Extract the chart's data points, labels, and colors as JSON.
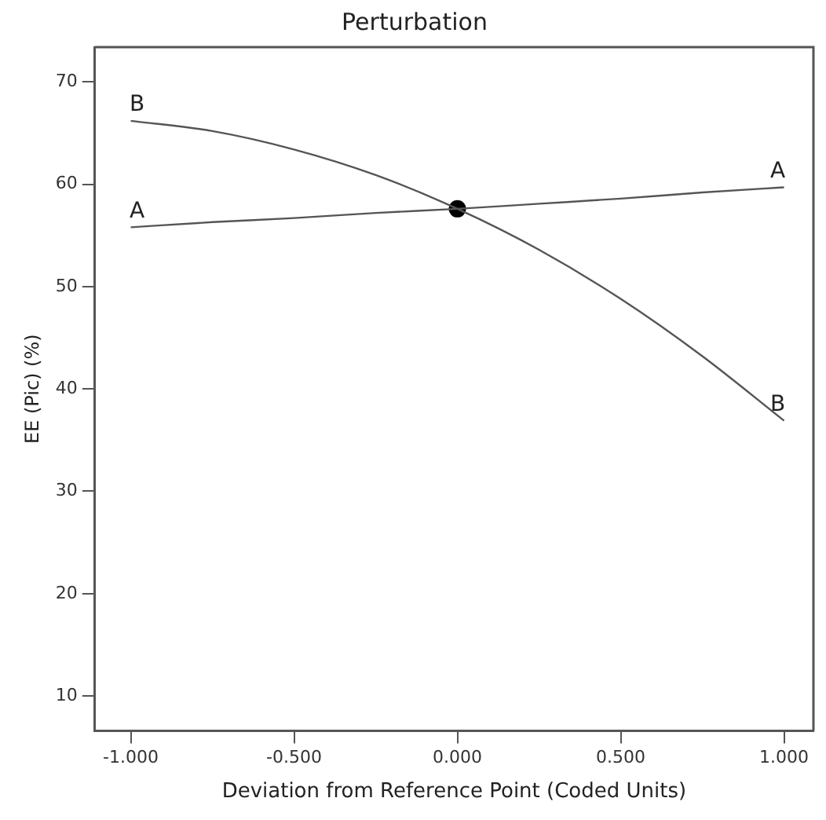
{
  "chart_data": {
    "type": "line",
    "title": "Perturbation",
    "xlabel": "Deviation from Reference Point (Coded Units)",
    "ylabel": "EE (Pic) (%)",
    "x": [
      -1,
      -0.75,
      -0.5,
      -0.25,
      0,
      0.25,
      0.5,
      0.75,
      1
    ],
    "series": [
      {
        "name": "A",
        "color": "#555555",
        "values": [
          55.8,
          56.3,
          56.7,
          57.2,
          57.6,
          58.1,
          58.6,
          59.2,
          59.7
        ],
        "marker": "none"
      },
      {
        "name": "B",
        "color": "#555555",
        "values": [
          66.2,
          65.2,
          63.4,
          60.9,
          57.6,
          53.6,
          48.8,
          43.2,
          36.9
        ],
        "marker": "none"
      },
      {
        "type": "scatter",
        "color": "#000000",
        "x": [
          0
        ],
        "values": [
          57.6
        ],
        "marker": "circle"
      }
    ],
    "xlim": [
      -1.11,
      1.09
    ],
    "ylim": [
      6.6,
      73.4
    ],
    "xticks": [
      {
        "value": -1,
        "label": "-1.000"
      },
      {
        "value": -0.5,
        "label": "-0.500"
      },
      {
        "value": 0,
        "label": "0.000"
      },
      {
        "value": 0.5,
        "label": "0.500"
      },
      {
        "value": 1,
        "label": "1.000"
      }
    ],
    "yticks": [
      10,
      20,
      30,
      40,
      50,
      60,
      70
    ],
    "grid": false,
    "legend": false,
    "line_style": "solid"
  }
}
